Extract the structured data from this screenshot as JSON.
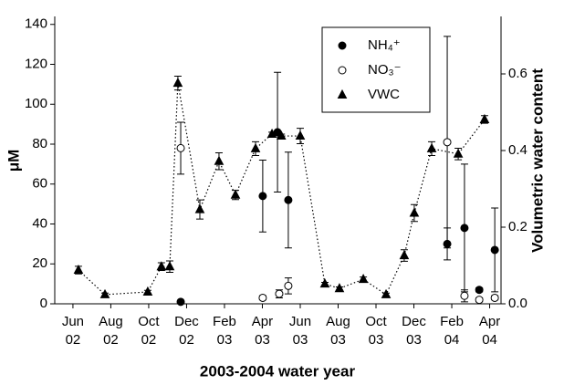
{
  "chart_data": {
    "type": "scatter",
    "x_label": "2003-2004 water year",
    "y_label": "μM",
    "y2_label": "Volumetric water content",
    "xlim": [
      5.04,
      28.6
    ],
    "xticks": [
      {
        "value": 6,
        "label": "Jun 02"
      },
      {
        "value": 8,
        "label": "Aug 02"
      },
      {
        "value": 10,
        "label": "Oct 02"
      },
      {
        "value": 12,
        "label": "Dec 02"
      },
      {
        "value": 14,
        "label": "Feb 03"
      },
      {
        "value": 16,
        "label": "Apr 03"
      },
      {
        "value": 18,
        "label": "Jun 03"
      },
      {
        "value": 20,
        "label": "Aug 03"
      },
      {
        "value": 22,
        "label": "Oct 03"
      },
      {
        "value": 24,
        "label": "Dec 03"
      },
      {
        "value": 26,
        "label": "Feb 04"
      },
      {
        "value": 28,
        "label": "Apr 04"
      }
    ],
    "ylim": [
      0,
      144
    ],
    "yticks": [
      0,
      20,
      40,
      60,
      80,
      100,
      120,
      140
    ],
    "y2lim": [
      0,
      0.75
    ],
    "y2ticks": [
      {
        "value": 0,
        "label": "0.0"
      },
      0.2,
      0.4,
      0.6
    ],
    "legend": "upper right",
    "series": [
      {
        "name": "NH₄⁺",
        "color": "#000000",
        "marker": "circle",
        "marker_fill": "#000000",
        "axis": "y",
        "x": [
          11.69,
          16.02,
          16.8,
          17.37,
          25.76,
          26.67,
          27.45,
          28.27
        ],
        "values": [
          1,
          54,
          86,
          52,
          30,
          38,
          7,
          27
        ],
        "errors": [
          0.5,
          18,
          30,
          24,
          8,
          32,
          1,
          21
        ]
      },
      {
        "name": "NO₃⁻",
        "color": "#000000",
        "marker": "circle",
        "marker_fill": "#ffffff",
        "axis": "y",
        "x": [
          11.69,
          16.02,
          16.89,
          17.37,
          25.76,
          26.67,
          27.45,
          28.27
        ],
        "values": [
          78,
          3,
          5,
          9,
          81,
          4,
          2,
          3
        ],
        "errors": [
          13,
          1,
          2,
          4,
          53,
          3,
          1,
          1
        ]
      },
      {
        "name": "VWC",
        "color": "#000000",
        "marker": "triangle",
        "marker_fill": "#000000",
        "axis": "y2",
        "line": "dotted",
        "x": [
          6.29,
          7.69,
          9.95,
          10.67,
          11.11,
          11.54,
          12.7,
          13.71,
          14.58,
          15.64,
          16.51,
          17.0,
          18.0,
          19.3,
          20.07,
          21.33,
          22.53,
          23.49,
          24.02,
          24.94,
          26.34,
          27.73
        ],
        "values": [
          0.088,
          0.024,
          0.031,
          0.097,
          0.097,
          0.576,
          0.246,
          0.372,
          0.284,
          0.405,
          0.443,
          0.438,
          0.438,
          0.052,
          0.04,
          0.064,
          0.024,
          0.126,
          0.237,
          0.405,
          0.391,
          0.481
        ],
        "errors": [
          0.01,
          0.004,
          0.004,
          0.01,
          0.015,
          0.018,
          0.025,
          0.022,
          0.012,
          0.018,
          0.005,
          0.005,
          0.02,
          0.004,
          0.004,
          0.006,
          0.004,
          0.015,
          0.022,
          0.018,
          0.015,
          0.01
        ]
      }
    ]
  }
}
